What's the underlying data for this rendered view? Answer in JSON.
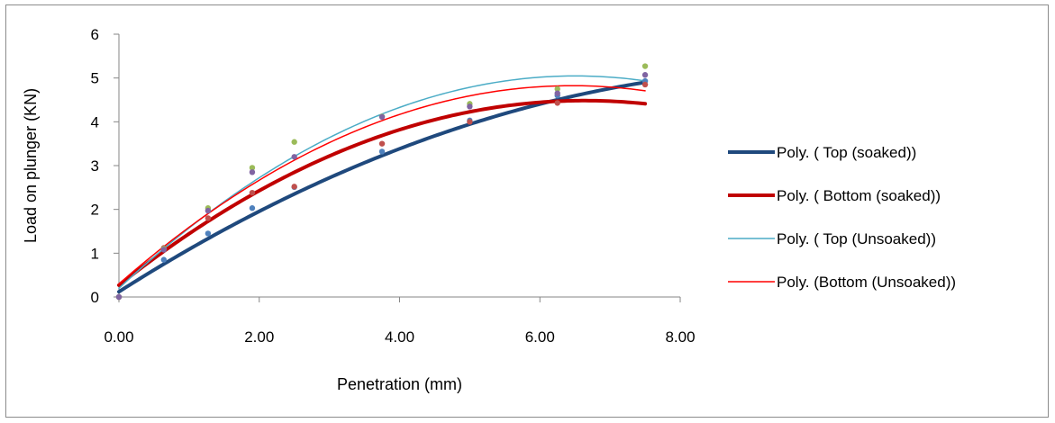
{
  "chart_data": {
    "type": "scatter",
    "title": "",
    "xlabel": "Penetration (mm)",
    "ylabel": "Load on plunger (KN)",
    "xlim": [
      0,
      8
    ],
    "ylim": [
      0,
      6
    ],
    "x_ticks": [
      "0.00",
      "2.00",
      "4.00",
      "6.00",
      "8.00"
    ],
    "y_ticks": [
      "0",
      "1",
      "2",
      "3",
      "4",
      "5",
      "6"
    ],
    "grid": false,
    "legend_position": "right",
    "x": [
      0,
      0.64,
      1.27,
      1.9,
      2.5,
      3.75,
      5.0,
      6.25,
      7.5
    ],
    "series": [
      {
        "name": "Top (soaked)",
        "color": "#4f81bd",
        "values": [
          0,
          0.85,
          1.45,
          2.03,
          2.51,
          3.32,
          4.03,
          4.6,
          4.93
        ]
      },
      {
        "name": "Bottom (soaked)",
        "color": "#c0504d",
        "values": [
          0,
          1.12,
          1.8,
          2.38,
          2.52,
          3.5,
          4.0,
          4.43,
          4.85
        ]
      },
      {
        "name": "Top (Unsoaked)",
        "color": "#9bbb59",
        "values": [
          0,
          1.1,
          2.03,
          2.95,
          3.54,
          4.12,
          4.41,
          4.75,
          5.27
        ]
      },
      {
        "name": "Bottom (Unsoaked)",
        "color": "#8064a2",
        "values": [
          0,
          1.08,
          1.97,
          2.85,
          3.2,
          4.11,
          4.35,
          4.65,
          5.07
        ]
      }
    ],
    "trendlines": [
      {
        "name": "Poly. ( Top (soaked))",
        "color": "#1f497d",
        "width": 4,
        "type": "poly2",
        "coef": [
          0.12,
          1.02,
          -0.051
        ]
      },
      {
        "name": "Poly. ( Bottom (soaked))",
        "color": "#c00000",
        "width": 4,
        "type": "poly2",
        "coef": [
          0.27,
          1.27,
          -0.0957
        ]
      },
      {
        "name": "Poly. ( Top (Unsoaked))",
        "color": "#4bacc6",
        "width": 1.5,
        "type": "poly2",
        "coef": [
          0.2,
          1.49,
          -0.1145
        ]
      },
      {
        "name": "Poly. (Bottom (Unsoaked))",
        "color": "#ff0000",
        "width": 1.5,
        "type": "poly2",
        "coef": [
          0.3,
          1.4,
          -0.1083
        ]
      }
    ]
  }
}
